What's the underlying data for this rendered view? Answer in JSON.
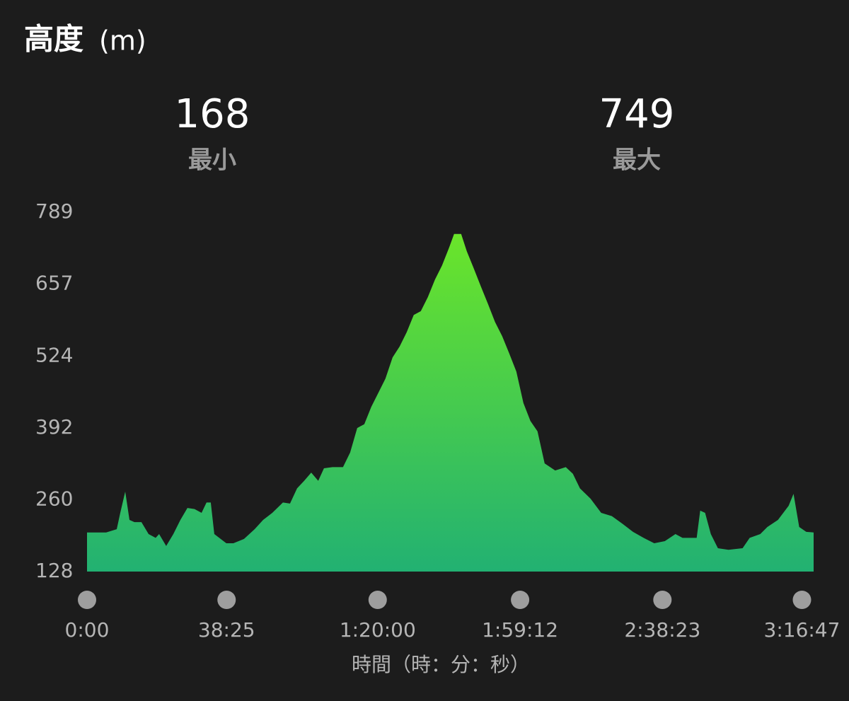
{
  "chart_data": {
    "type": "area",
    "title": "高度",
    "title_unit": "(m)",
    "stats": [
      {
        "value": 168,
        "label": "最小"
      },
      {
        "value": 749,
        "label": "最大"
      }
    ],
    "x_label": "時間（時：分：秒）",
    "x": [
      0,
      315,
      491,
      549,
      631,
      701,
      783,
      899,
      1016,
      1133,
      1191,
      1308,
      1425,
      1542,
      1658,
      1775,
      1892,
      1974,
      2044,
      2102,
      2184,
      2301,
      2418,
      2593,
      2768,
      2908,
      3060,
      3235,
      3352,
      3469,
      3586,
      3703,
      3819,
      3913,
      4053,
      4228,
      4345,
      4462,
      4579,
      4695,
      4812,
      4929,
      5046,
      5163,
      5279,
      5396,
      5513,
      5630,
      5747,
      5863,
      5980,
      6062,
      6179,
      6272,
      6389,
      6506,
      6623,
      6739,
      6856,
      6973,
      7090,
      7207,
      7323,
      7440,
      7557,
      7732,
      7907,
      8024,
      8141,
      8316,
      8491,
      8667,
      8842,
      9017,
      9192,
      9367,
      9543,
      9718,
      9835,
      10068,
      10127,
      10208,
      10302,
      10419,
      10594,
      10827,
      10944,
      11119,
      11236,
      11411,
      11587,
      11668,
      11762,
      11879,
      12000
    ],
    "values": [
      200,
      200,
      206,
      236,
      275,
      223,
      219,
      219,
      197,
      190,
      197,
      175,
      197,
      223,
      245,
      243,
      236,
      255,
      255,
      197,
      190,
      180,
      180,
      188,
      206,
      223,
      236,
      255,
      253,
      281,
      295,
      310,
      295,
      318,
      320,
      320,
      347,
      392,
      399,
      431,
      457,
      483,
      522,
      542,
      568,
      600,
      607,
      633,
      665,
      691,
      724,
      749,
      749,
      717,
      685,
      652,
      620,
      587,
      561,
      529,
      496,
      438,
      405,
      386,
      327,
      314,
      320,
      308,
      281,
      262,
      236,
      230,
      216,
      201,
      190,
      180,
      184,
      197,
      190,
      190,
      240,
      236,
      197,
      171,
      168,
      171,
      190,
      197,
      210,
      223,
      249,
      271,
      210,
      201,
      200
    ],
    "xlim": [
      0,
      12000
    ],
    "ylim": [
      128,
      789
    ],
    "yticks": [
      128,
      260,
      392,
      524,
      657,
      789
    ],
    "xticks": [
      {
        "value": 0,
        "label": "0:00"
      },
      {
        "value": 2305,
        "label": "38:25"
      },
      {
        "value": 4800,
        "label": "1:20:00"
      },
      {
        "value": 7152,
        "label": "1:59:12"
      },
      {
        "value": 9503,
        "label": "2:38:23"
      },
      {
        "value": 11807,
        "label": "3:16:47"
      }
    ],
    "colors": [
      "#6ae52a",
      "#22b172"
    ]
  }
}
